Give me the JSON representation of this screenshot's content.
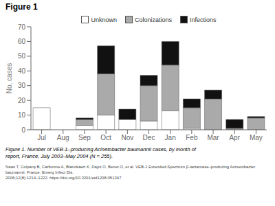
{
  "chart_data": {
    "type": "bar",
    "title": "Figure 1",
    "ylabel": "No. cases",
    "categories": [
      "Jul",
      "Aug",
      "Sep",
      "Oct",
      "Nov",
      "Dec",
      "Jan",
      "Feb",
      "Mar",
      "Apr",
      "May"
    ],
    "series": [
      {
        "name": "Unknown",
        "color": "#ffffff",
        "values": [
          15,
          0,
          3,
          10,
          7,
          6,
          13,
          1,
          0,
          0,
          0
        ]
      },
      {
        "name": "Colonizations",
        "color": "#aaaaaa",
        "values": [
          0,
          0,
          4,
          28,
          0,
          24,
          31,
          14,
          21,
          1,
          8
        ]
      },
      {
        "name": "Infections",
        "color": "#111111",
        "values": [
          0,
          0,
          1,
          19,
          7,
          7,
          16,
          6,
          6,
          6,
          1
        ]
      }
    ],
    "stacked": true,
    "ylim": [
      0,
      70
    ],
    "yticks": [
      0,
      10,
      20,
      30,
      40,
      50,
      60,
      70
    ],
    "grid": false,
    "legend": "upper center",
    "annotations": [
      "Figure 1. Number of VEB-1–producing Acinetobacter baumannii cases, by month of",
      "report, France, July 2003–May 2004 (N = 255).",
      "Naas T, Colpanş B, Carbonne A, Blanckaert K, Dajot O, Benet O, et al. VEB-1 Extended-Spectrum β-lactamase–producing Acinetobacter baumannii, France. Emerg Infect Dis.\n2006;12(8):1214–1222. https://doi.org/10.3201/eid1208.051347"
    ]
  }
}
